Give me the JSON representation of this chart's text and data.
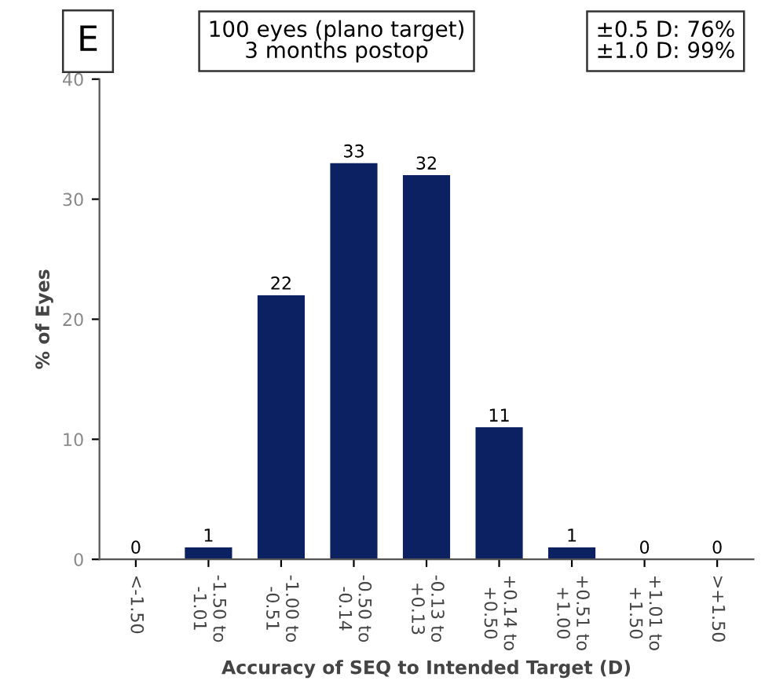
{
  "chart_data": {
    "type": "bar",
    "xlabel": "Accuracy of SEQ to Intended Target (D)",
    "ylabel": "% of Eyes",
    "categories": [
      "<-1.50",
      "-1.50 to\n-1.01",
      "-1.00 to\n-0.51",
      "-0.50 to\n-0.14",
      "-0.13 to\n+0.13",
      "+0.14 to\n+0.50",
      "+0.51 to\n+1.00",
      "+1.01 to\n+1.50",
      ">+1.50"
    ],
    "values": [
      0,
      1,
      22,
      33,
      32,
      11,
      1,
      0,
      0
    ],
    "color": "#0c2161",
    "data_labels": true,
    "ylim": [
      0,
      40
    ],
    "yticks": [
      0,
      10,
      20,
      30,
      40
    ],
    "grid": false,
    "annotations": [
      "E",
      "100 eyes (plano target)\n3 months postop",
      "±0.5 D: 76%\n±1.0 D: 99%"
    ]
  }
}
